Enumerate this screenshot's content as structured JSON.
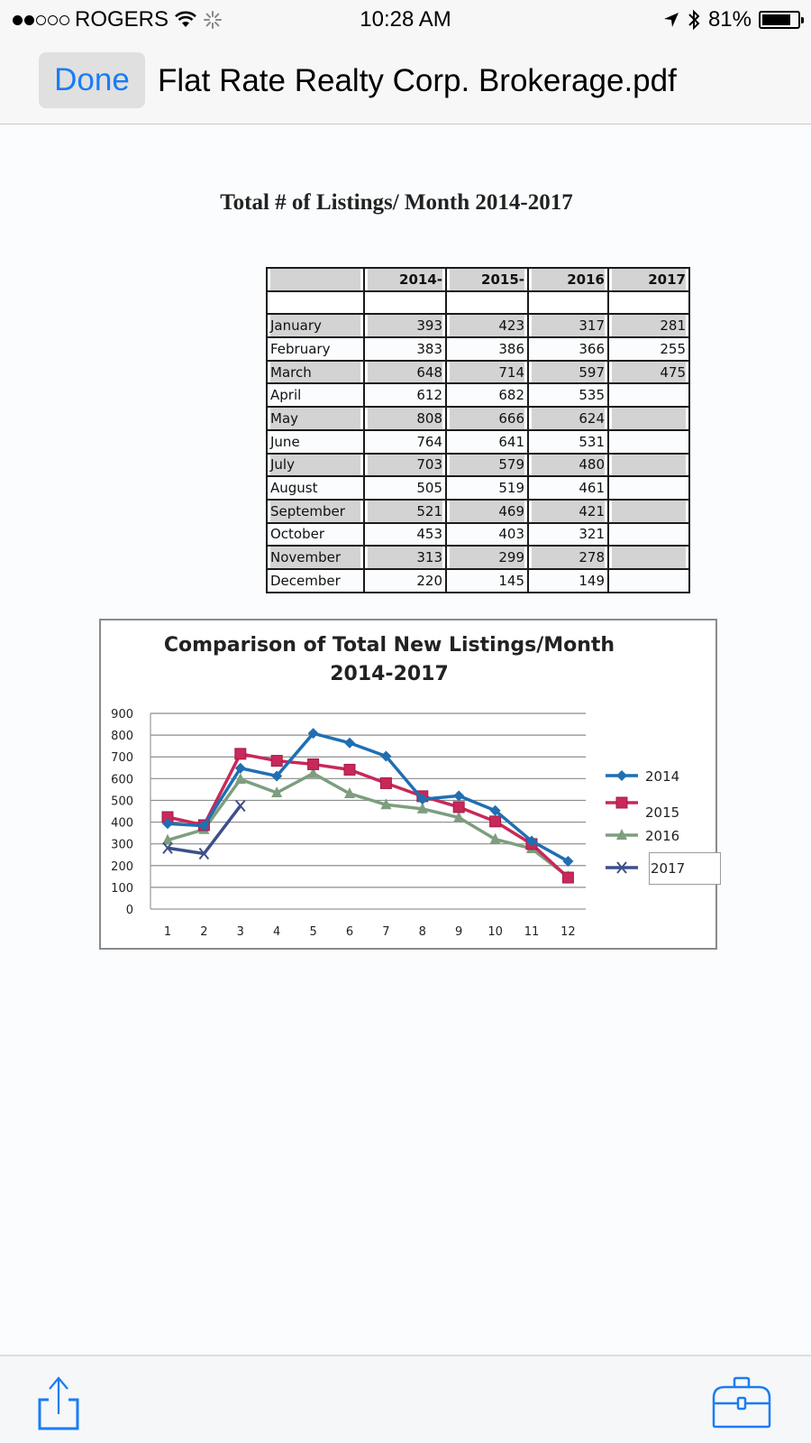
{
  "status_bar": {
    "carrier": "ROGERS",
    "signal_dots_filled": 2,
    "signal_dots_total": 5,
    "time": "10:28 AM",
    "battery_percent": "81%",
    "icons": [
      "wifi-icon",
      "activity-spinner-icon",
      "location-arrow-icon",
      "bluetooth-icon",
      "battery-icon"
    ]
  },
  "nav": {
    "done_label": "Done",
    "title": "Flat Rate Realty Corp. Brokerage.pdf"
  },
  "document": {
    "title": "Total # of Listings/ Month 2014-2017",
    "table": {
      "headers": [
        "",
        "2014-",
        "2015-",
        "2016",
        "2017"
      ],
      "rows": [
        {
          "month": "January",
          "v2014": "393",
          "v2015": "423",
          "v2016": "317",
          "v2017": "281"
        },
        {
          "month": "February",
          "v2014": "383",
          "v2015": "386",
          "v2016": "366",
          "v2017": "255"
        },
        {
          "month": "March",
          "v2014": "648",
          "v2015": "714",
          "v2016": "597",
          "v2017": "475"
        },
        {
          "month": "April",
          "v2014": "612",
          "v2015": "682",
          "v2016": "535",
          "v2017": ""
        },
        {
          "month": "May",
          "v2014": "808",
          "v2015": "666",
          "v2016": "624",
          "v2017": ""
        },
        {
          "month": "June",
          "v2014": "764",
          "v2015": "641",
          "v2016": "531",
          "v2017": ""
        },
        {
          "month": "July",
          "v2014": "703",
          "v2015": "579",
          "v2016": "480",
          "v2017": ""
        },
        {
          "month": "August",
          "v2014": "505",
          "v2015": "519",
          "v2016": "461",
          "v2017": ""
        },
        {
          "month": "September",
          "v2014": "521",
          "v2015": "469",
          "v2016": "421",
          "v2017": ""
        },
        {
          "month": "October",
          "v2014": "453",
          "v2015": "403",
          "v2016": "321",
          "v2017": ""
        },
        {
          "month": "November",
          "v2014": "313",
          "v2015": "299",
          "v2016": "278",
          "v2017": ""
        },
        {
          "month": "December",
          "v2014": "220",
          "v2015": "145",
          "v2016": "149",
          "v2017": ""
        }
      ]
    }
  },
  "chart_data": {
    "type": "line",
    "title": "Comparison of Total New Listings/Month 2014-2017",
    "title_lines": [
      "Comparison of Total New Listings/Month",
      "2014-2017"
    ],
    "xlabel": "",
    "ylabel": "",
    "x": [
      1,
      2,
      3,
      4,
      5,
      6,
      7,
      8,
      9,
      10,
      11,
      12
    ],
    "y_ticks": [
      0,
      100,
      200,
      300,
      400,
      500,
      600,
      700,
      800,
      900
    ],
    "ylim": [
      0,
      900
    ],
    "grid": true,
    "legend_position": "right",
    "series": [
      {
        "name": "2014",
        "color": "#1f6fb2",
        "marker": "diamond",
        "values": [
          393,
          383,
          648,
          612,
          808,
          764,
          703,
          505,
          521,
          453,
          313,
          220
        ]
      },
      {
        "name": "2015",
        "color": "#c8285a",
        "marker": "square",
        "values": [
          423,
          386,
          714,
          682,
          666,
          641,
          579,
          519,
          469,
          403,
          299,
          145
        ]
      },
      {
        "name": "2016",
        "color": "#7d9e7f",
        "marker": "triangle",
        "values": [
          317,
          366,
          597,
          535,
          624,
          531,
          480,
          461,
          421,
          321,
          278,
          149
        ]
      },
      {
        "name": "2017",
        "color": "#3d4f8a",
        "marker": "x",
        "values": [
          281,
          255,
          475,
          null,
          null,
          null,
          null,
          null,
          null,
          null,
          null,
          null
        ]
      }
    ]
  },
  "toolbar": {
    "share_icon": "share-icon",
    "markup_icon": "toolbox-icon"
  }
}
